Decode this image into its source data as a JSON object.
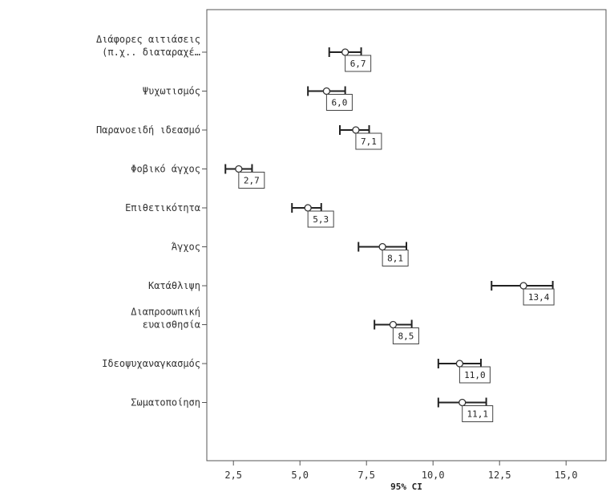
{
  "chart_data": {
    "type": "errorbar",
    "xlabel": "95% CI",
    "xlim": [
      1.5,
      16.5
    ],
    "x_ticks": [
      "2,5",
      "5,0",
      "7,5",
      "10,0",
      "12,5",
      "15,0"
    ],
    "x_tick_values": [
      2.5,
      5.0,
      7.5,
      10.0,
      12.5,
      15.0
    ],
    "grid": false,
    "categories": [
      [
        "Διάφορες αιτιάσεις",
        "(π.χ.. διαταραχέ…"
      ],
      [
        "Ψυχωτισμός"
      ],
      [
        "Παρανοειδή ιδεασμό"
      ],
      [
        "Φοβικό άγχος"
      ],
      [
        "Επιθετικότητα"
      ],
      [
        "Άγχος"
      ],
      [
        "Κατάθλιψη"
      ],
      [
        "Διαπροσωπική",
        "ευαισθησία"
      ],
      [
        "Ιδεοψυχαναγκασμός"
      ],
      [
        "Σωματοποίηση"
      ]
    ],
    "means": [
      6.7,
      6.0,
      7.1,
      2.7,
      5.3,
      8.1,
      13.4,
      8.5,
      11.0,
      11.1
    ],
    "lower": [
      6.1,
      5.3,
      6.5,
      2.2,
      4.7,
      7.2,
      12.2,
      7.8,
      10.2,
      10.2
    ],
    "upper": [
      7.3,
      6.7,
      7.6,
      3.2,
      5.8,
      9.0,
      14.5,
      9.2,
      11.8,
      12.0
    ],
    "labels": [
      "6,7",
      "6,0",
      "7,1",
      "2,7",
      "5,3",
      "8,1",
      "13,4",
      "8,5",
      "11,0",
      "11,1"
    ]
  }
}
